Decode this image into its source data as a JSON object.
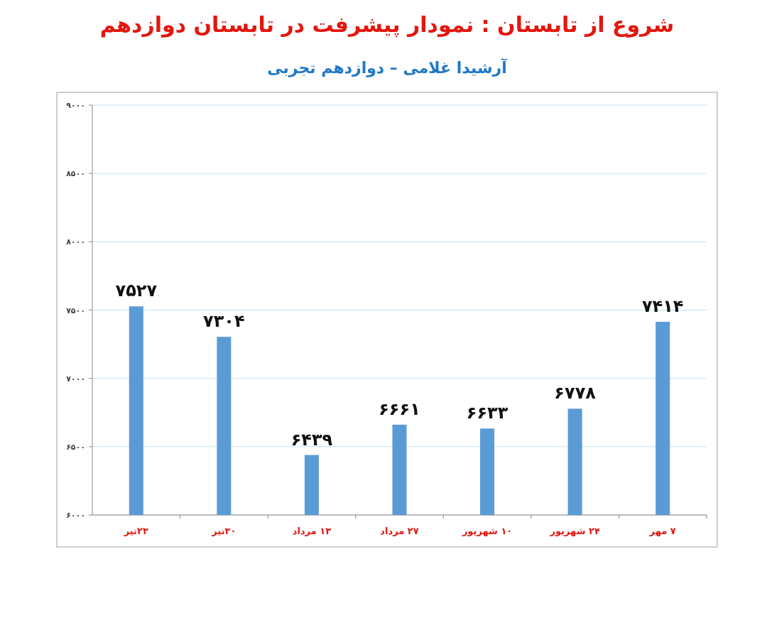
{
  "chart_data": {
    "type": "bar",
    "title": "شروع از تابستان : نمودار پیشرفت در تابستان دوازدهم",
    "subtitle": "آرشیدا غلامی – دوازدهم تجربی",
    "categories": [
      "۲۳تیر",
      "۳۰تیر",
      "۱۳ مرداد",
      "۲۷ مرداد",
      "۱۰ شهریور",
      "۲۴ شهریور",
      "۷ مهر"
    ],
    "values": [
      7527,
      7304,
      6439,
      6661,
      6633,
      6778,
      7414
    ],
    "value_labels": [
      "۷۵۲۷",
      "۷۳۰۴",
      "۶۴۳۹",
      "۶۶۶۱",
      "۶۶۳۳",
      "۶۷۷۸",
      "۷۴۱۴"
    ],
    "color": "#5b9bd5",
    "ylim": [
      6000,
      9000
    ],
    "yticks": [
      {
        "value": 6000,
        "label": "۶۰۰۰"
      },
      {
        "value": 6500,
        "label": "۶۵۰۰"
      },
      {
        "value": 7000,
        "label": "۷۰۰۰"
      },
      {
        "value": 7500,
        "label": "۷۵۰۰"
      },
      {
        "value": 8000,
        "label": "۸۰۰۰"
      },
      {
        "value": 8500,
        "label": "۸۵۰۰"
      },
      {
        "value": 9000,
        "label": "۹۰۰۰"
      }
    ],
    "grid": "y"
  }
}
